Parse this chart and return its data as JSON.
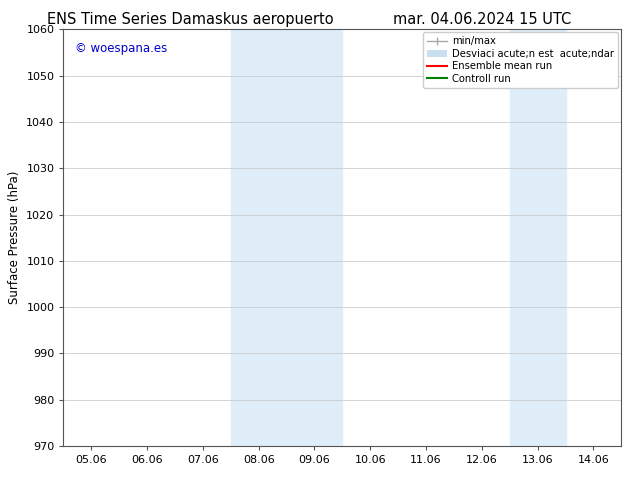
{
  "title_left": "ENS Time Series Damaskus aeropuerto",
  "title_right": "mar. 04.06.2024 15 UTC",
  "ylabel": "Surface Pressure (hPa)",
  "ylim": [
    970,
    1060
  ],
  "yticks": [
    970,
    980,
    990,
    1000,
    1010,
    1020,
    1030,
    1040,
    1050,
    1060
  ],
  "xtick_labels": [
    "05.06",
    "06.06",
    "07.06",
    "08.06",
    "09.06",
    "10.06",
    "11.06",
    "12.06",
    "13.06",
    "14.06"
  ],
  "shaded_regions": [
    {
      "xstart": 3,
      "xend": 4,
      "color": "#deedf8"
    },
    {
      "xstart": 4,
      "xend": 5,
      "color": "#deedf8"
    },
    {
      "xstart": 8,
      "xend": 9,
      "color": "#deedf8"
    }
  ],
  "watermark_text": "© woespana.es",
  "watermark_color": "#0000cc",
  "background_color": "#ffffff",
  "grid_color": "#cccccc",
  "title_fontsize": 10.5,
  "axis_fontsize": 8.5,
  "tick_fontsize": 8,
  "legend_label1": "min/max",
  "legend_label2": "Desviaci acute;n est  acute;ndar",
  "legend_label3": "Ensemble mean run",
  "legend_label4": "Controll run",
  "legend_color1": "#aaaaaa",
  "legend_color2": "#c8dff0",
  "legend_color3": "#ff0000",
  "legend_color4": "#008000"
}
